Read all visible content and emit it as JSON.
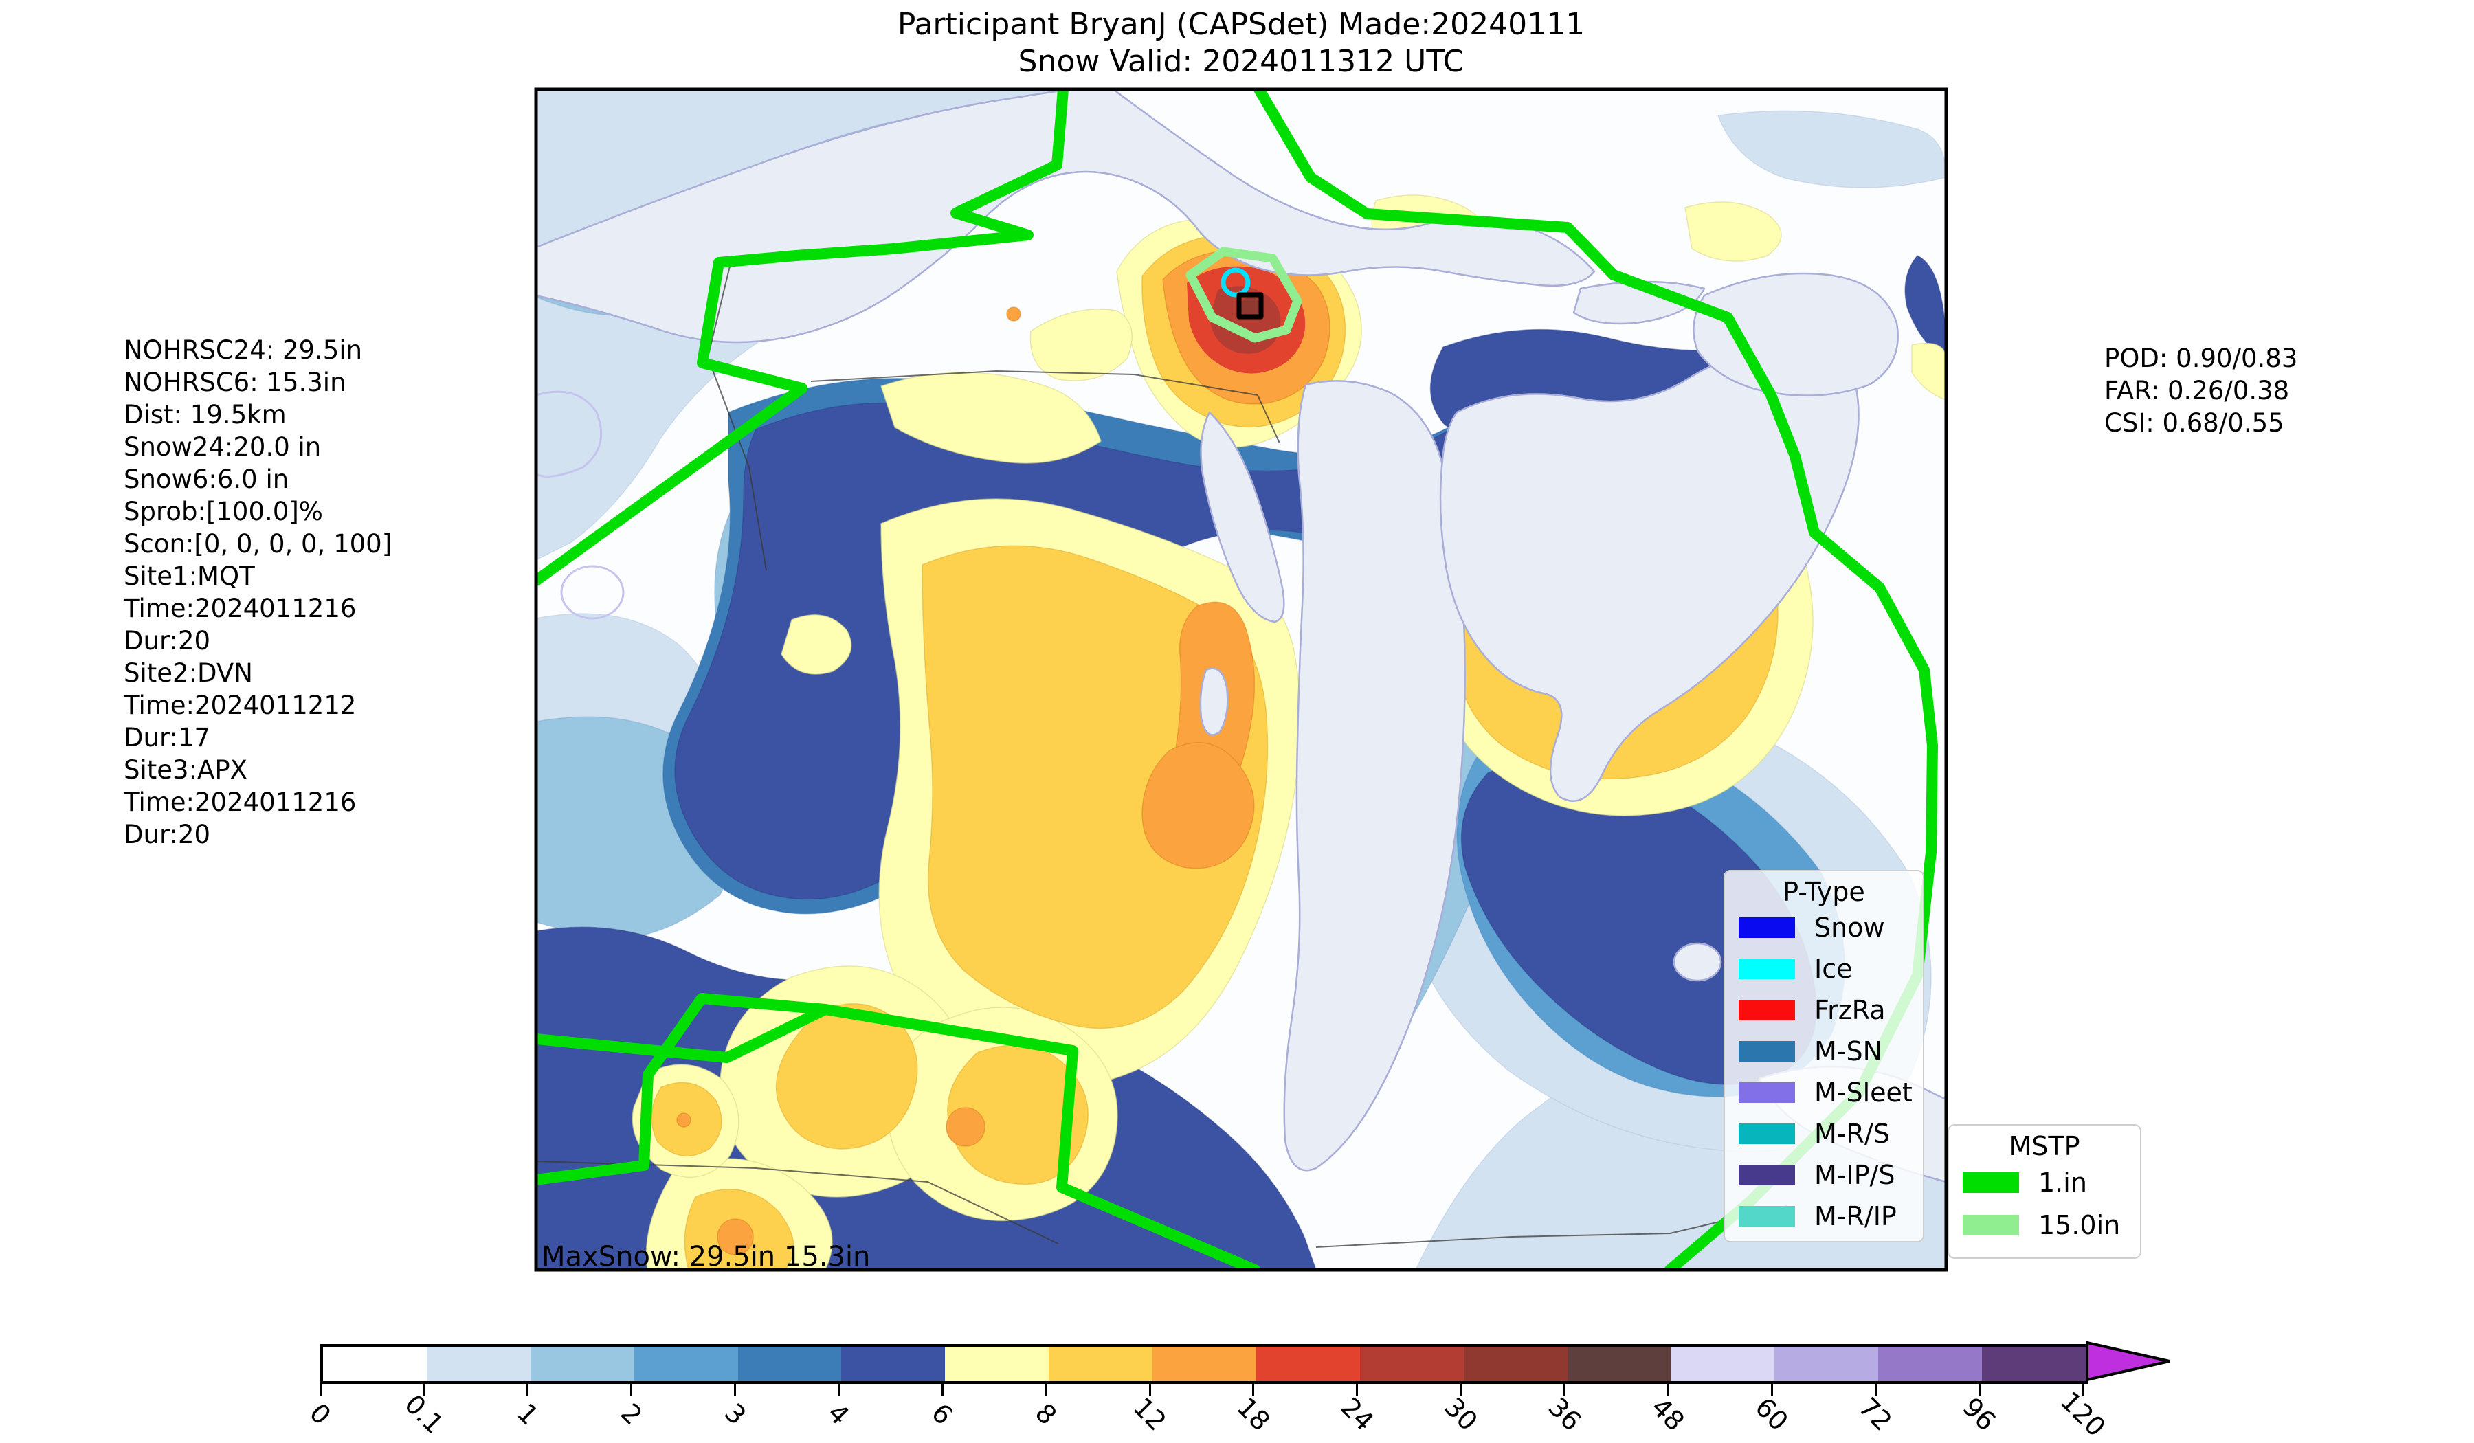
{
  "title": {
    "line1": "Participant BryanJ (CAPSdet) Made:20240111",
    "line2": "Snow Valid: 2024011312 UTC"
  },
  "stats_left": {
    "lines": [
      "NOHRSC24: 29.5in",
      "NOHRSC6: 15.3in",
      "Dist: 19.5km",
      "Snow24:20.0 in",
      "Snow6:6.0 in",
      "Sprob:[100.0]%",
      "Scon:[0, 0, 0, 0, 100]",
      "Site1:MQT",
      "Time:2024011216",
      "Dur:20",
      "Site2:DVN",
      "Time:2024011212",
      "Dur:17",
      "Site3:APX",
      "Time:2024011216",
      "Dur:20"
    ]
  },
  "metrics_right": {
    "lines": [
      "POD: 0.90/0.83",
      "FAR: 0.26/0.38",
      "CSI: 0.68/0.55"
    ]
  },
  "map": {
    "max_snow_label": "MaxSnow: 29.5in 15.3in",
    "land_color": "#fcfdff",
    "water_color": "#e9edf6",
    "water_outline_color": "#a9aed8",
    "markers": [
      {
        "name": "observed-max-circle",
        "shape": "circle",
        "color": "#00e0ff"
      },
      {
        "name": "forecast-max-square",
        "shape": "square",
        "color": "#000000"
      }
    ]
  },
  "ptype_legend": {
    "title": "P-Type",
    "items": [
      {
        "label": "Snow",
        "color": "#0a0af0"
      },
      {
        "label": "Ice",
        "color": "#00ffff"
      },
      {
        "label": "FrzRa",
        "color": "#fb0d0d"
      },
      {
        "label": "M-SN",
        "color": "#2a76ad"
      },
      {
        "label": "M-Sleet",
        "color": "#8270e8"
      },
      {
        "label": "M-R/S",
        "color": "#07b6bd"
      },
      {
        "label": "M-IP/S",
        "color": "#473a8c"
      },
      {
        "label": "M-R/IP",
        "color": "#52d7c8"
      }
    ]
  },
  "mstp_legend": {
    "title": "MSTP",
    "items": [
      {
        "label": "1.in",
        "color": "#00dd00"
      },
      {
        "label": "15.0in",
        "color": "#90ee90"
      }
    ]
  },
  "colorbar": {
    "ticks": [
      "0",
      "0.1",
      "1",
      "2",
      "3",
      "4",
      "6",
      "8",
      "12",
      "18",
      "24",
      "30",
      "36",
      "48",
      "60",
      "72",
      "96",
      "120"
    ],
    "segment_colors": [
      "#ffffff",
      "#d3e2f0",
      "#99c6e0",
      "#5ba0d0",
      "#3c7db8",
      "#3c53a3",
      "#ffffb3",
      "#fdd04d",
      "#fba43f",
      "#e2432f",
      "#b33c33",
      "#8f3931",
      "#5e3f3d",
      "#dbd8f6",
      "#b7abe4",
      "#9678c8",
      "#5e3c7a"
    ],
    "arrow_color": "#bf2fe0"
  },
  "chart_data": {
    "type": "heatmap",
    "title": "Snow amount filled contours (inches)",
    "contour_levels_in": [
      0,
      0.1,
      1,
      2,
      3,
      4,
      6,
      8,
      12,
      18,
      24,
      30,
      36,
      48,
      60,
      72,
      96,
      120
    ],
    "level_colors": [
      "#ffffff",
      "#d3e2f0",
      "#99c6e0",
      "#5ba0d0",
      "#3c7db8",
      "#3c53a3",
      "#ffffb3",
      "#fdd04d",
      "#fba43f",
      "#e2432f",
      "#b33c33",
      "#8f3931",
      "#5e3f3d",
      "#dbd8f6",
      "#b7abe4",
      "#9678c8",
      "#5e3c7a"
    ],
    "mstp_contours_in": [
      1,
      15
    ],
    "max_snow_in": {
      "nohrsc24": 29.5,
      "nohrsc6": 15.3
    },
    "verification": {
      "pod": [
        0.9,
        0.83
      ],
      "far": [
        0.26,
        0.38
      ],
      "csi": [
        0.68,
        0.55
      ]
    }
  }
}
